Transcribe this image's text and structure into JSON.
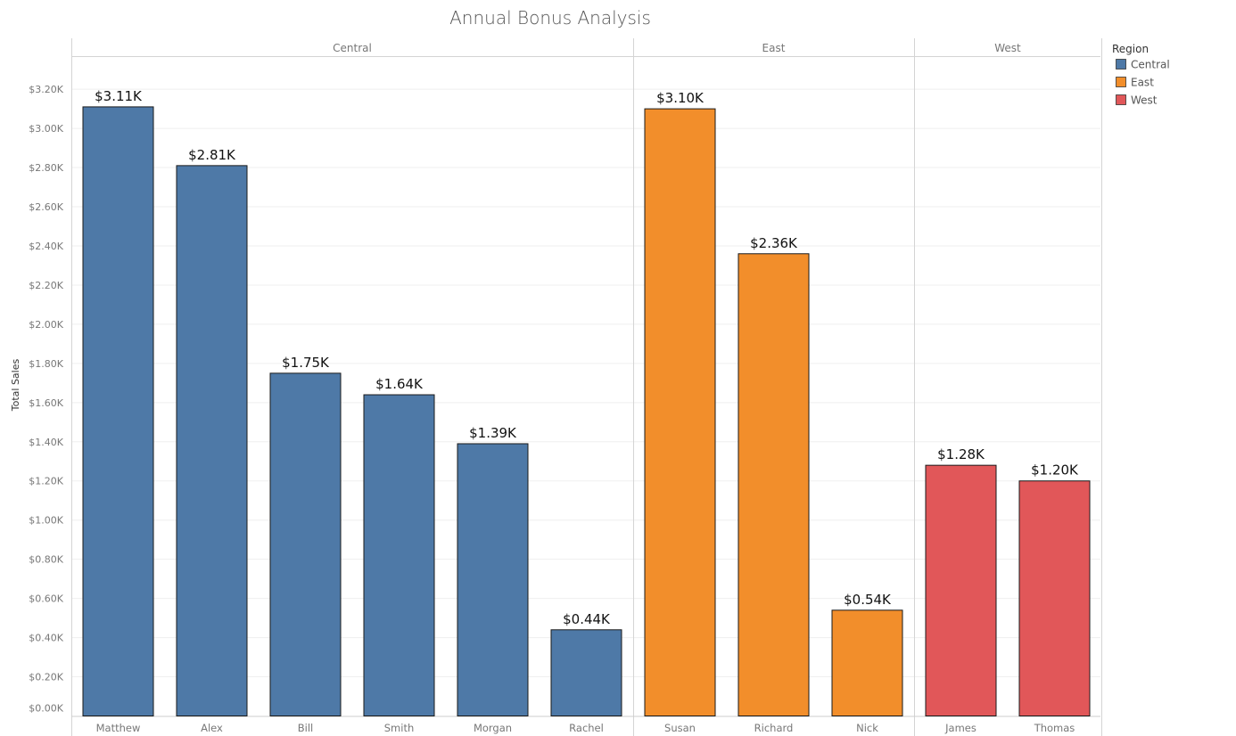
{
  "chart_data": {
    "type": "bar",
    "title": "Annual Bonus Analysis",
    "xlabel": "",
    "ylabel": "Total Sales",
    "ylim": [
      0,
      3.3
    ],
    "y_ticks": [
      0,
      0.2,
      0.4,
      0.6,
      0.8,
      1.0,
      1.2,
      1.4,
      1.6,
      1.8,
      2.0,
      2.2,
      2.4,
      2.6,
      2.8,
      3.0,
      3.2
    ],
    "y_tick_labels": [
      "$0.00K",
      "$0.20K",
      "$0.40K",
      "$0.60K",
      "$0.80K",
      "$1.00K",
      "$1.20K",
      "$1.40K",
      "$1.60K",
      "$1.80K",
      "$2.00K",
      "$2.20K",
      "$2.40K",
      "$2.60K",
      "$2.80K",
      "$3.00K",
      "$3.20K"
    ],
    "grid": true,
    "legend": {
      "title": "Region",
      "placement": "top-right",
      "items": [
        {
          "label": "Central",
          "color": "#4e79a7"
        },
        {
          "label": "East",
          "color": "#f28e2b"
        },
        {
          "label": "West",
          "color": "#e15759"
        }
      ]
    },
    "panels": [
      {
        "region": "Central",
        "color": "#4e79a7",
        "categories": [
          "Matthew",
          "Alex",
          "Bill",
          "Smith",
          "Morgan",
          "Rachel"
        ],
        "values": [
          3.11,
          2.81,
          1.75,
          1.64,
          1.39,
          0.44
        ],
        "labels": [
          "$3.11K",
          "$2.81K",
          "$1.75K",
          "$1.64K",
          "$1.39K",
          "$0.44K"
        ]
      },
      {
        "region": "East",
        "color": "#f28e2b",
        "categories": [
          "Susan",
          "Richard",
          "Nick"
        ],
        "values": [
          3.1,
          2.36,
          0.54
        ],
        "labels": [
          "$3.10K",
          "$2.36K",
          "$0.54K"
        ]
      },
      {
        "region": "West",
        "color": "#e15759",
        "categories": [
          "James",
          "Thomas"
        ],
        "values": [
          1.28,
          1.2
        ],
        "labels": [
          "$1.28K",
          "$1.20K"
        ]
      }
    ]
  }
}
